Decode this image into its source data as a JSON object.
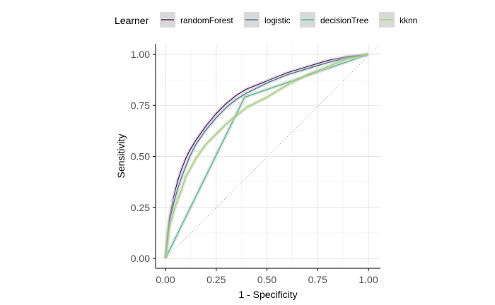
{
  "chart_data": {
    "type": "line",
    "xlabel": "1 - Specificity",
    "ylabel": "Sensitivity",
    "xlim": [
      0,
      1
    ],
    "ylim": [
      0,
      1
    ],
    "x_ticks": [
      "0.00",
      "0.25",
      "0.50",
      "0.75",
      "1.00"
    ],
    "y_ticks": [
      "0.00",
      "0.25",
      "0.50",
      "0.75",
      "1.00"
    ],
    "grid": true,
    "legend": {
      "title": "Learner",
      "position": "top"
    },
    "reference_line": {
      "style": "dotted",
      "from": [
        0,
        0
      ],
      "to": [
        1,
        1
      ]
    },
    "series": [
      {
        "name": "randomForest",
        "color": "#440154",
        "points": [
          [
            0,
            0
          ],
          [
            0.01,
            0.12
          ],
          [
            0.02,
            0.2
          ],
          [
            0.04,
            0.3
          ],
          [
            0.06,
            0.38
          ],
          [
            0.08,
            0.44
          ],
          [
            0.1,
            0.49
          ],
          [
            0.12,
            0.53
          ],
          [
            0.15,
            0.58
          ],
          [
            0.2,
            0.65
          ],
          [
            0.25,
            0.71
          ],
          [
            0.3,
            0.76
          ],
          [
            0.35,
            0.8
          ],
          [
            0.4,
            0.83
          ],
          [
            0.5,
            0.87
          ],
          [
            0.6,
            0.91
          ],
          [
            0.7,
            0.94
          ],
          [
            0.8,
            0.97
          ],
          [
            0.9,
            0.99
          ],
          [
            1,
            1
          ]
        ]
      },
      {
        "name": "logistic",
        "color": "#31688e",
        "points": [
          [
            0,
            0
          ],
          [
            0.01,
            0.1
          ],
          [
            0.02,
            0.18
          ],
          [
            0.04,
            0.27
          ],
          [
            0.06,
            0.34
          ],
          [
            0.08,
            0.4
          ],
          [
            0.1,
            0.45
          ],
          [
            0.12,
            0.5
          ],
          [
            0.15,
            0.56
          ],
          [
            0.2,
            0.63
          ],
          [
            0.25,
            0.69
          ],
          [
            0.3,
            0.74
          ],
          [
            0.35,
            0.78
          ],
          [
            0.4,
            0.81
          ],
          [
            0.5,
            0.86
          ],
          [
            0.6,
            0.9
          ],
          [
            0.7,
            0.93
          ],
          [
            0.8,
            0.96
          ],
          [
            0.9,
            0.985
          ],
          [
            1,
            1
          ]
        ]
      },
      {
        "name": "decisionTree",
        "color": "#35b779",
        "points": [
          [
            0,
            0
          ],
          [
            0.39,
            0.79
          ],
          [
            1,
            1
          ]
        ]
      },
      {
        "name": "kknn",
        "color": "#8fd744",
        "points": [
          [
            0,
            0
          ],
          [
            0.02,
            0.16
          ],
          [
            0.05,
            0.26
          ],
          [
            0.08,
            0.34
          ],
          [
            0.1,
            0.4
          ],
          [
            0.15,
            0.49
          ],
          [
            0.2,
            0.56
          ],
          [
            0.25,
            0.61
          ],
          [
            0.3,
            0.66
          ],
          [
            0.35,
            0.7
          ],
          [
            0.4,
            0.74
          ],
          [
            0.5,
            0.79
          ],
          [
            0.6,
            0.85
          ],
          [
            0.7,
            0.9
          ],
          [
            0.8,
            0.94
          ],
          [
            0.9,
            0.98
          ],
          [
            1,
            1
          ]
        ]
      }
    ]
  }
}
